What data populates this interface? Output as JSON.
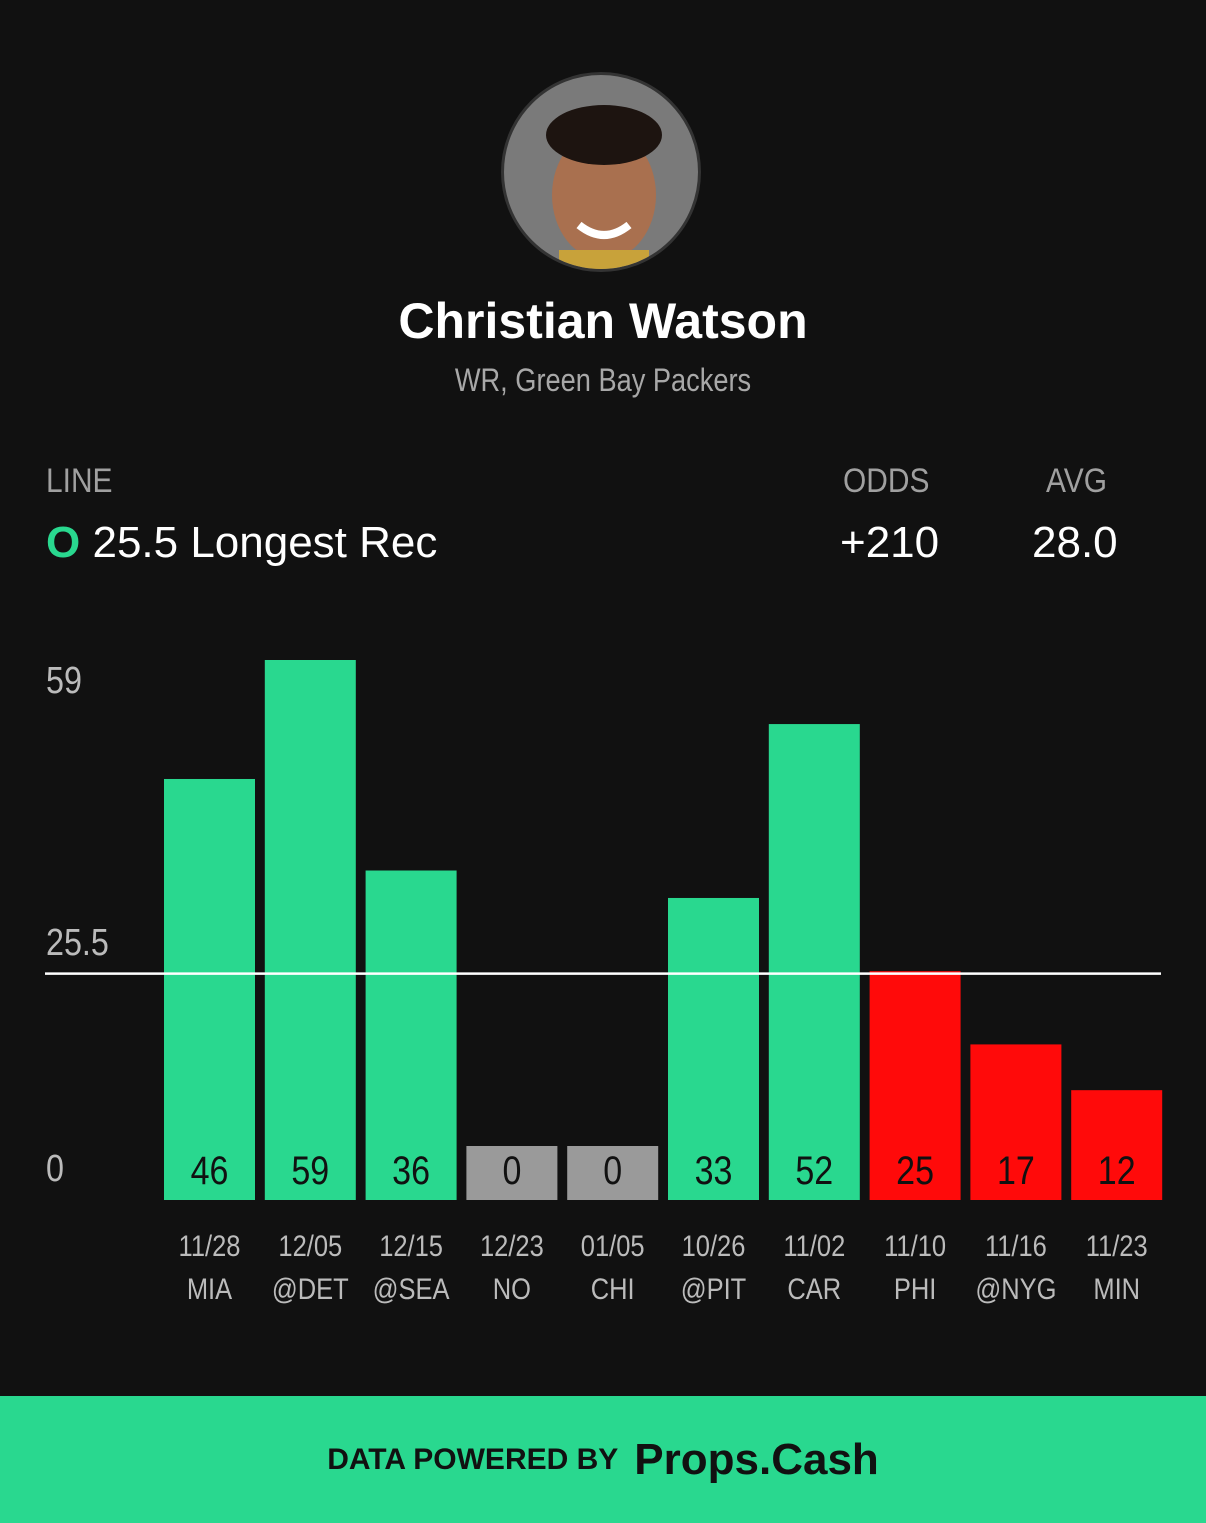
{
  "player": {
    "name": "Christian Watson",
    "subtitle": "WR, Green Bay Packers"
  },
  "line": {
    "header": "LINE",
    "side": "O",
    "value": "25.5 Longest Rec"
  },
  "odds": {
    "header": "ODDS",
    "value": "+210"
  },
  "avg": {
    "header": "AVG",
    "value": "28.0"
  },
  "colors": {
    "over": "#29d88f",
    "under": "#ff0a0a",
    "push": "#9a9a9a",
    "background": "#111111"
  },
  "chart_data": {
    "type": "bar",
    "categories": [
      [
        "11/28",
        "MIA"
      ],
      [
        "12/05",
        "@DET"
      ],
      [
        "12/15",
        "@SEA"
      ],
      [
        "12/23",
        "NO"
      ],
      [
        "01/05",
        "CHI"
      ],
      [
        "10/26",
        "@PIT"
      ],
      [
        "11/02",
        "CAR"
      ],
      [
        "11/10",
        "PHI"
      ],
      [
        "11/16",
        "@NYG"
      ],
      [
        "11/23",
        "MIN"
      ]
    ],
    "values": [
      46,
      59,
      36,
      0,
      0,
      33,
      52,
      25,
      17,
      12
    ],
    "line": 25.5,
    "yticks": [
      "59",
      "25.5",
      "0"
    ],
    "ylim": [
      0,
      59
    ],
    "grid": false
  },
  "footer": {
    "prefix": "DATA POWERED BY",
    "brand": "Props.Cash"
  }
}
